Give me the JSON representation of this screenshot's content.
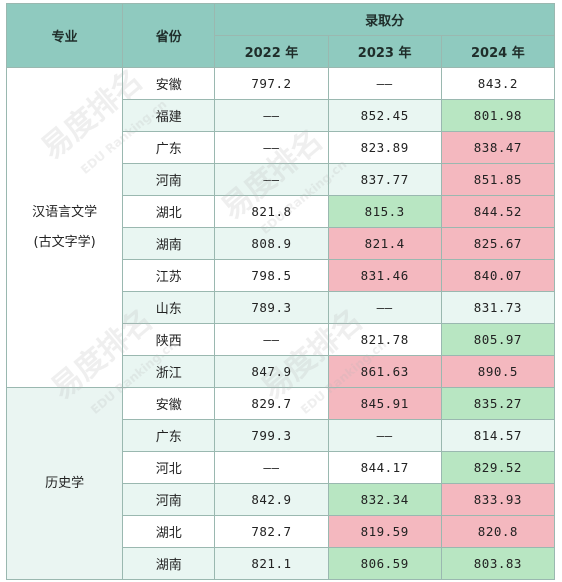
{
  "headers": {
    "major": "专业",
    "province": "省份",
    "score_group": "录取分",
    "years": [
      "2022 年",
      "2023 年",
      "2024 年"
    ]
  },
  "majors": [
    {
      "lines": [
        "汉语言文学",
        "(古文字学)"
      ],
      "row_start": 0,
      "row_count": 10
    },
    {
      "lines": [
        "历史学"
      ],
      "row_start": 10,
      "row_count": 6
    }
  ],
  "rows": [
    {
      "province": "安徽",
      "values": [
        "797.2",
        "——",
        "843.2"
      ],
      "highlight": [
        "none",
        "none",
        "none"
      ]
    },
    {
      "province": "福建",
      "values": [
        "——",
        "852.45",
        "801.98"
      ],
      "highlight": [
        "none",
        "none",
        "green"
      ]
    },
    {
      "province": "广东",
      "values": [
        "——",
        "823.89",
        "838.47"
      ],
      "highlight": [
        "none",
        "none",
        "red"
      ]
    },
    {
      "province": "河南",
      "values": [
        "——",
        "837.77",
        "851.85"
      ],
      "highlight": [
        "none",
        "none",
        "red"
      ]
    },
    {
      "province": "湖北",
      "values": [
        "821.8",
        "815.3",
        "844.52"
      ],
      "highlight": [
        "none",
        "green",
        "red"
      ]
    },
    {
      "province": "湖南",
      "values": [
        "808.9",
        "821.4",
        "825.67"
      ],
      "highlight": [
        "none",
        "red",
        "red"
      ]
    },
    {
      "province": "江苏",
      "values": [
        "798.5",
        "831.46",
        "840.07"
      ],
      "highlight": [
        "none",
        "red",
        "red"
      ]
    },
    {
      "province": "山东",
      "values": [
        "789.3",
        "——",
        "831.73"
      ],
      "highlight": [
        "none",
        "none",
        "none"
      ]
    },
    {
      "province": "陕西",
      "values": [
        "——",
        "821.78",
        "805.97"
      ],
      "highlight": [
        "none",
        "none",
        "green"
      ]
    },
    {
      "province": "浙江",
      "values": [
        "847.9",
        "861.63",
        "890.5"
      ],
      "highlight": [
        "none",
        "red",
        "red"
      ]
    },
    {
      "province": "安徽",
      "values": [
        "829.7",
        "845.91",
        "835.27"
      ],
      "highlight": [
        "none",
        "red",
        "green"
      ]
    },
    {
      "province": "广东",
      "values": [
        "799.3",
        "——",
        "814.57"
      ],
      "highlight": [
        "none",
        "none",
        "none"
      ]
    },
    {
      "province": "河北",
      "values": [
        "——",
        "844.17",
        "829.52"
      ],
      "highlight": [
        "none",
        "none",
        "green"
      ]
    },
    {
      "province": "河南",
      "values": [
        "842.9",
        "832.34",
        "833.93"
      ],
      "highlight": [
        "none",
        "green",
        "red"
      ]
    },
    {
      "province": "湖北",
      "values": [
        "782.7",
        "819.59",
        "820.8"
      ],
      "highlight": [
        "none",
        "red",
        "red"
      ]
    },
    {
      "province": "湖南",
      "values": [
        "821.1",
        "806.59",
        "803.83"
      ],
      "highlight": [
        "none",
        "green",
        "green"
      ]
    }
  ],
  "watermark": {
    "brand": "易度排名",
    "sub": "EDU Ranking.cn"
  },
  "colors": {
    "header_bg": "#8fcabf",
    "row_tint": "#e9f6f2",
    "highlight_green": "#b8e6c2",
    "highlight_red": "#f4b8bf",
    "border": "#9ab8b0"
  }
}
